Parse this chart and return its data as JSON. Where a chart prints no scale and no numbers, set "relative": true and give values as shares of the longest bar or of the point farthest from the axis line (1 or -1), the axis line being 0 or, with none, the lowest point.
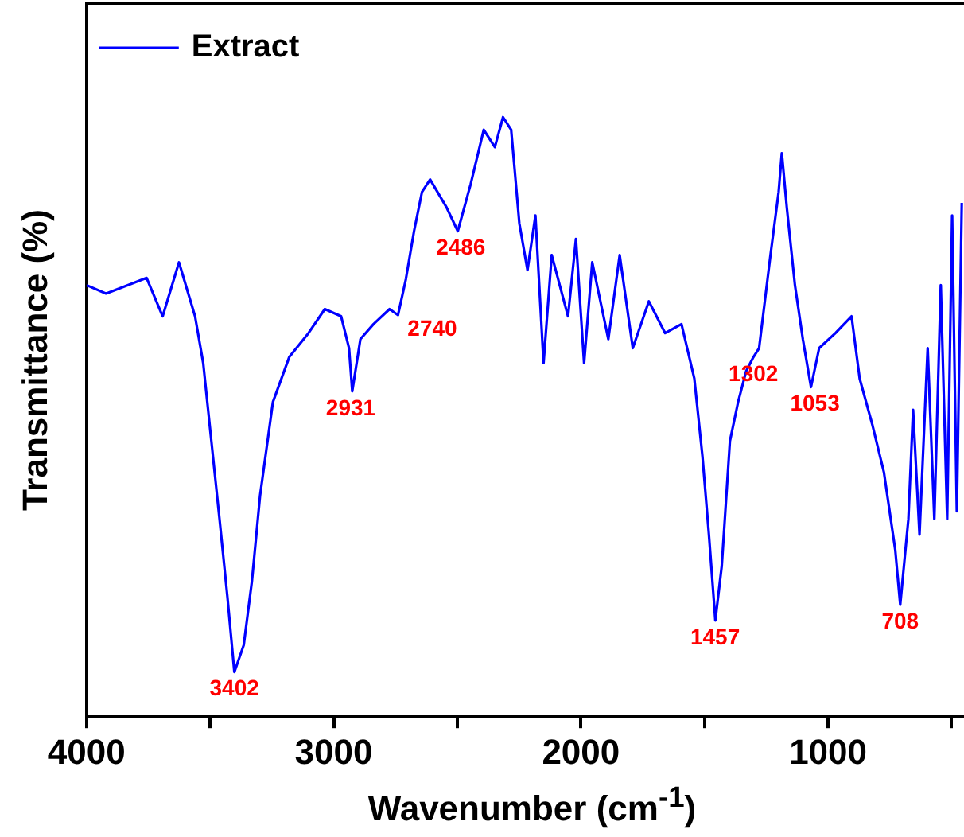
{
  "chart_data": {
    "type": "line",
    "relative": true,
    "xlabel": "Wavenumber (cm$^{-1}$)",
    "ylabel": "Transmittance (%)",
    "xlim": [
      4000,
      450
    ],
    "xticks": [
      4000,
      {
        "value": 3500,
        "label": null
      },
      3000,
      {
        "value": 2500,
        "label": null
      },
      2000,
      {
        "value": 1500,
        "label": null
      },
      1000,
      {
        "value": 500,
        "label": null
      }
    ],
    "legend": "top left",
    "grid": false,
    "marker": "none",
    "line_style": "solid",
    "x": [
      4000,
      3921,
      3757,
      3692,
      3626,
      3561,
      3528,
      3495,
      3462,
      3430,
      3402,
      3364,
      3331,
      3298,
      3246,
      3180,
      3102,
      3036,
      2970,
      2938,
      2925,
      2892,
      2839,
      2774,
      2740,
      2708,
      2675,
      2643,
      2610,
      2544,
      2498,
      2446,
      2393,
      2348,
      2315,
      2282,
      2249,
      2216,
      2184,
      2151,
      2118,
      2052,
      2020,
      1987,
      1954,
      1889,
      1843,
      1790,
      1725,
      1659,
      1593,
      1541,
      1508,
      1482,
      1456,
      1430,
      1397,
      1364,
      1331,
      1302,
      1279,
      1233,
      1200,
      1187,
      1167,
      1134,
      1102,
      1069,
      1036,
      970,
      905,
      872,
      820,
      774,
      728,
      708,
      675,
      656,
      630,
      597,
      570,
      544,
      518,
      498,
      479,
      459
    ],
    "series": [
      {
        "name": "Extract",
        "color": "#0000ff",
        "values": [
          0.72,
          0.706,
          0.732,
          0.668,
          0.758,
          0.668,
          0.59,
          0.46,
          0.33,
          0.2,
          0.075,
          0.12,
          0.226,
          0.369,
          0.525,
          0.6,
          0.64,
          0.68,
          0.668,
          0.615,
          0.543,
          0.63,
          0.655,
          0.68,
          0.67,
          0.73,
          0.81,
          0.875,
          0.896,
          0.85,
          0.81,
          0.888,
          0.979,
          0.95,
          1.0,
          0.979,
          0.823,
          0.745,
          0.836,
          0.59,
          0.77,
          0.668,
          0.797,
          0.59,
          0.758,
          0.63,
          0.77,
          0.615,
          0.693,
          0.64,
          0.655,
          0.564,
          0.434,
          0.304,
          0.161,
          0.252,
          0.46,
          0.525,
          0.577,
          0.6,
          0.615,
          0.77,
          0.875,
          0.94,
          0.85,
          0.72,
          0.63,
          0.55,
          0.615,
          0.64,
          0.668,
          0.564,
          0.486,
          0.408,
          0.278,
          0.187,
          0.33,
          0.512,
          0.304,
          0.615,
          0.33,
          0.72,
          0.33,
          0.836,
          0.343,
          0.857
        ]
      }
    ],
    "annotations": [
      {
        "text": "3402",
        "x": 3402,
        "y": 0.075
      },
      {
        "text": "2931",
        "x": 2931,
        "y": 0.543
      },
      {
        "text": "2740",
        "x": 2740,
        "y": 0.67
      },
      {
        "text": "2486",
        "x": 2486,
        "y": 0.81
      },
      {
        "text": "1457",
        "x": 1457,
        "y": 0.161
      },
      {
        "text": "1302",
        "x": 1302,
        "y": 0.6
      },
      {
        "text": "1053",
        "x": 1053,
        "y": 0.55
      },
      {
        "text": "708",
        "x": 708,
        "y": 0.187
      }
    ]
  }
}
